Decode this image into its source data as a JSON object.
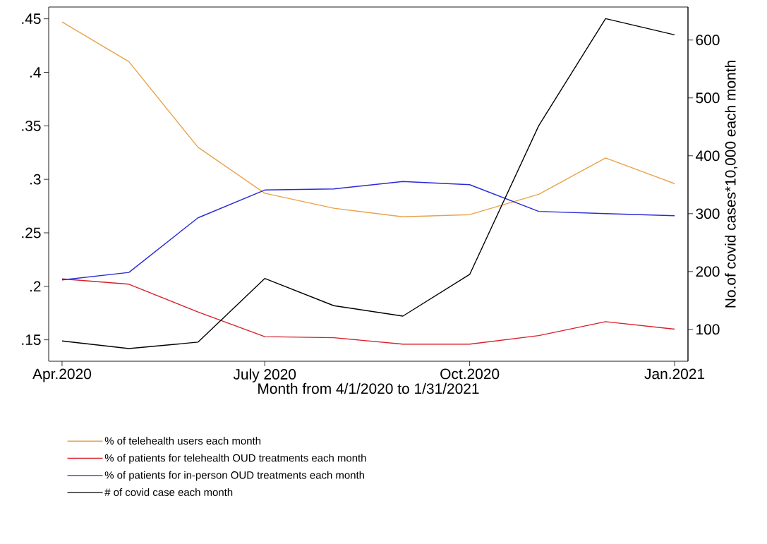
{
  "chart_data": {
    "type": "line",
    "xlabel": "Month from 4/1/2020 to 1/31/2021",
    "y2label": "No.of covid cases*10,000 each month",
    "x": [
      "2020-04",
      "2020-05",
      "2020-06",
      "2020-07",
      "2020-08",
      "2020-09",
      "2020-10",
      "2020-11",
      "2020-12",
      "2021-01"
    ],
    "xlim": [
      "2020-03-26",
      "2021-01-07"
    ],
    "xticks": [
      {
        "value": "2020-04",
        "label": "Apr.2020"
      },
      {
        "value": "2020-07",
        "label": "July 2020"
      },
      {
        "value": "2020-10",
        "label": "Oct.2020"
      },
      {
        "value": "2021-01",
        "label": "Jan.2021"
      }
    ],
    "ylim": [
      0.13,
      0.461
    ],
    "yticks": [
      {
        "value": 0.15,
        "label": ".15"
      },
      {
        "value": 0.2,
        "label": ".2"
      },
      {
        "value": 0.25,
        "label": ".25"
      },
      {
        "value": 0.3,
        "label": ".3"
      },
      {
        "value": 0.35,
        "label": ".35"
      },
      {
        "value": 0.4,
        "label": ".4"
      },
      {
        "value": 0.45,
        "label": ".45"
      }
    ],
    "y2lim": [
      45,
      657
    ],
    "y2ticks": [
      100,
      200,
      300,
      400,
      500,
      600
    ],
    "legend": "bottom",
    "series": [
      {
        "name": "% of telehealth users each month",
        "color": "#e8a24a",
        "values": [
          0.447,
          0.41,
          0.33,
          0.287,
          0.273,
          0.265,
          0.267,
          0.286,
          0.32,
          0.296
        ]
      },
      {
        "name": "% of patients for telehealth OUD treatments each month",
        "color": "#d8202a",
        "values": [
          0.207,
          0.202,
          0.176,
          0.153,
          0.152,
          0.146,
          0.146,
          0.154,
          0.167,
          0.16
        ]
      },
      {
        "name": "% of patients for in-person OUD treatments each month",
        "color": "#2a2ad6",
        "values": [
          0.206,
          0.213,
          0.264,
          0.29,
          0.291,
          0.298,
          0.295,
          0.27,
          0.268,
          0.266
        ]
      },
      {
        "name": "# of covid case each month",
        "color": "#000000",
        "axis": "y2",
        "values": [
          80,
          67,
          78,
          188,
          141,
          123,
          195,
          452,
          637,
          609
        ]
      }
    ]
  }
}
